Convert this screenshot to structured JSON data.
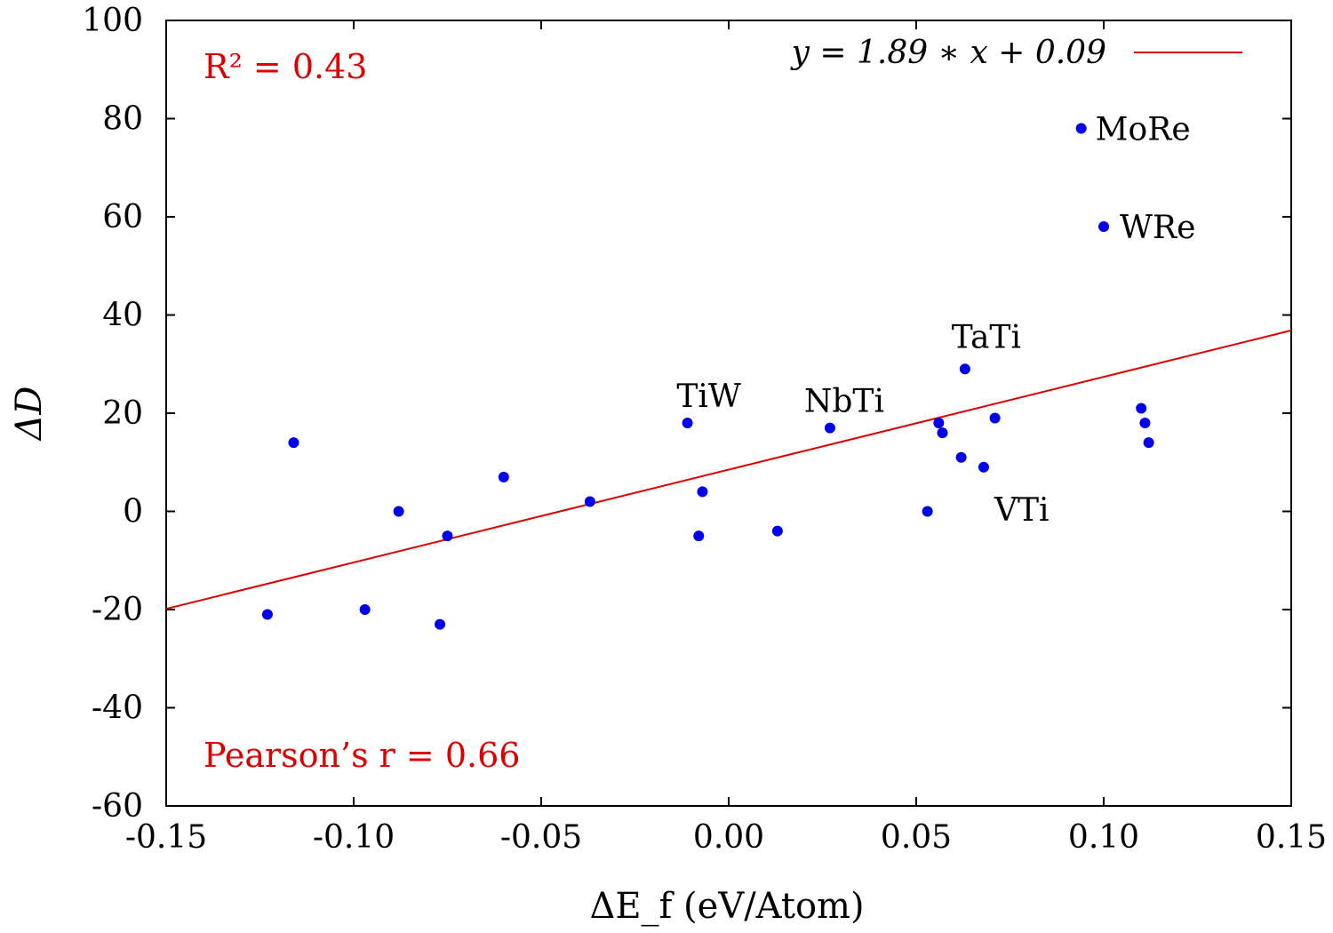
{
  "chart_data": {
    "type": "scatter",
    "xlabel": "ΔE_f (eV/Atom)",
    "ylabel": "ΔD",
    "xlim": [
      -0.15,
      0.15
    ],
    "ylim": [
      -60,
      100
    ],
    "x_ticks": [
      -0.15,
      -0.1,
      -0.05,
      0.0,
      0.05,
      0.1,
      0.15
    ],
    "x_tick_labels": [
      "-0.15",
      "-0.10",
      "-0.05",
      "0.00",
      "0.05",
      "0.10",
      "0.15"
    ],
    "y_ticks": [
      -60,
      -40,
      -20,
      0,
      20,
      40,
      60,
      80,
      100
    ],
    "y_tick_labels": [
      "-60",
      "-40",
      "-20",
      "0",
      "20",
      "40",
      "60",
      "80",
      "100"
    ],
    "grid": false,
    "legend_position": "top-right",
    "point_color": "#0000ee",
    "fit_color": "#dd0000",
    "points": [
      {
        "x": -0.123,
        "y": -21,
        "label": ""
      },
      {
        "x": -0.116,
        "y": 14,
        "label": ""
      },
      {
        "x": -0.097,
        "y": -20,
        "label": ""
      },
      {
        "x": -0.088,
        "y": 0,
        "label": ""
      },
      {
        "x": -0.077,
        "y": -23,
        "label": ""
      },
      {
        "x": -0.075,
        "y": -5,
        "label": ""
      },
      {
        "x": -0.06,
        "y": 7,
        "label": ""
      },
      {
        "x": -0.037,
        "y": 2,
        "label": ""
      },
      {
        "x": -0.011,
        "y": 18,
        "label": "TiW"
      },
      {
        "x": -0.008,
        "y": -5,
        "label": ""
      },
      {
        "x": -0.007,
        "y": 4,
        "label": ""
      },
      {
        "x": 0.013,
        "y": -4,
        "label": ""
      },
      {
        "x": 0.027,
        "y": 17,
        "label": "NbTi"
      },
      {
        "x": 0.053,
        "y": 0,
        "label": ""
      },
      {
        "x": 0.056,
        "y": 18,
        "label": ""
      },
      {
        "x": 0.057,
        "y": 16,
        "label": ""
      },
      {
        "x": 0.062,
        "y": 11,
        "label": ""
      },
      {
        "x": 0.063,
        "y": 29,
        "label": "TaTi"
      },
      {
        "x": 0.068,
        "y": 9,
        "label": "VTi"
      },
      {
        "x": 0.071,
        "y": 19,
        "label": ""
      },
      {
        "x": 0.094,
        "y": 78,
        "label": "MoRe"
      },
      {
        "x": 0.1,
        "y": 58,
        "label": "WRe"
      },
      {
        "x": 0.11,
        "y": 21,
        "label": ""
      },
      {
        "x": 0.111,
        "y": 18,
        "label": ""
      },
      {
        "x": 0.112,
        "y": 14,
        "label": ""
      }
    ],
    "fit": {
      "slope": 1.89,
      "intercept": 0.09,
      "legend": "y = 1.89 ∗ x + 0.09"
    },
    "annotations": {
      "r_squared": "R² = 0.43",
      "pearson": "Pearson’s r = 0.66"
    }
  }
}
